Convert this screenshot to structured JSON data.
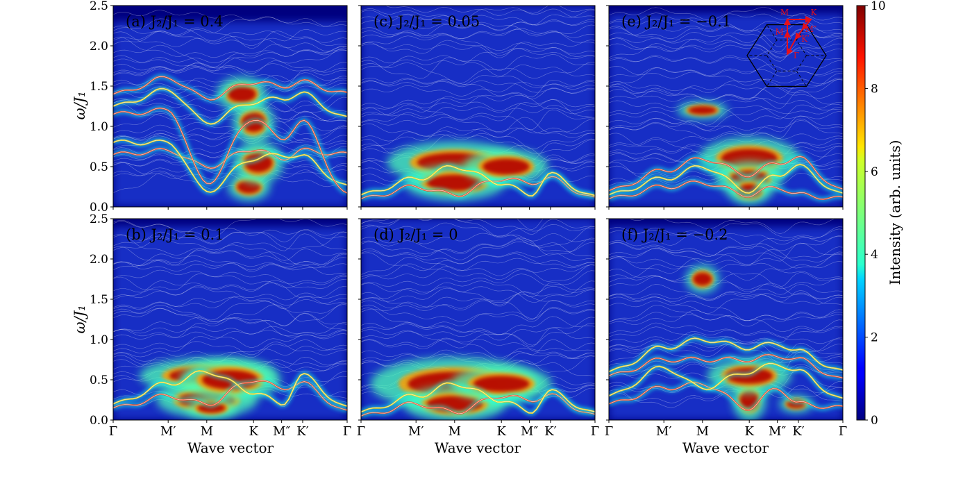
{
  "chart_data": {
    "type": "heatmap",
    "colormap": "jet",
    "panels": [
      {
        "id": "a",
        "label": "(a)",
        "param_label": "J₂/J₁ = 0.4",
        "j2_over_j1": 0.4,
        "modes": [
          [
            0.65,
            0.7,
            0.5,
            0.72,
            0.6,
            0.7,
            0.65
          ],
          [
            0.8,
            0.8,
            0.2,
            0.6,
            0.65,
            0.62,
            0.25
          ],
          [
            1.15,
            1.2,
            0.3,
            1.1,
            0.85,
            1.05,
            0.15
          ],
          [
            1.25,
            1.45,
            1.05,
            1.3,
            1.35,
            1.4,
            1.1
          ],
          [
            1.4,
            1.6,
            1.35,
            1.55,
            1.5,
            1.55,
            1.4
          ]
        ],
        "highlights": [
          [
            0.58,
            0.25,
            0.05,
            0.08
          ],
          [
            0.62,
            0.55,
            0.06,
            0.12
          ],
          [
            0.6,
            1.05,
            0.05,
            0.12
          ],
          [
            0.55,
            1.4,
            0.06,
            0.1
          ]
        ],
        "continuum_max": 2.3
      },
      {
        "id": "b",
        "label": "(b)",
        "param_label": "J₂/J₁ = 0.1",
        "j2_over_j1": 0.1,
        "modes": [
          [
            0.15,
            0.3,
            0.2,
            0.5,
            0.4,
            0.45,
            0.1
          ],
          [
            0.2,
            0.45,
            0.6,
            0.35,
            0.2,
            0.55,
            0.15
          ]
        ],
        "highlights": [
          [
            0.4,
            0.55,
            0.16,
            0.1
          ],
          [
            0.4,
            0.25,
            0.12,
            0.1
          ],
          [
            0.5,
            0.5,
            0.12,
            0.12
          ],
          [
            0.42,
            0.15,
            0.06,
            0.06
          ]
        ],
        "continuum_max": 2.4
      },
      {
        "id": "c",
        "label": "(c)",
        "param_label": "J₂/J₁ = 0.05",
        "j2_over_j1": 0.05,
        "modes": [
          [
            0.1,
            0.25,
            0.15,
            0.35,
            0.3,
            0.35,
            0.1
          ],
          [
            0.15,
            0.35,
            0.5,
            0.3,
            0.15,
            0.4,
            0.12
          ]
        ],
        "highlights": [
          [
            0.4,
            0.55,
            0.16,
            0.12
          ],
          [
            0.4,
            0.3,
            0.12,
            0.1
          ],
          [
            0.62,
            0.5,
            0.1,
            0.1
          ]
        ],
        "continuum_max": 2.5
      },
      {
        "id": "d",
        "label": "(d)",
        "param_label": "J₂/J₁ = 0",
        "j2_over_j1": 0,
        "modes": [
          [
            0.05,
            0.2,
            0.1,
            0.3,
            0.25,
            0.3,
            0.05
          ],
          [
            0.1,
            0.3,
            0.45,
            0.25,
            0.1,
            0.35,
            0.08
          ]
        ],
        "highlights": [
          [
            0.4,
            0.45,
            0.2,
            0.15
          ],
          [
            0.4,
            0.2,
            0.12,
            0.1
          ],
          [
            0.6,
            0.45,
            0.12,
            0.1
          ]
        ],
        "continuum_max": 2.5
      },
      {
        "id": "e",
        "label": "(e)",
        "param_label": "J₂/J₁ = −0.1",
        "j2_over_j1": -0.1,
        "modes": [
          [
            0.1,
            0.25,
            0.3,
            0.15,
            0.25,
            0.15,
            0.1
          ],
          [
            0.15,
            0.35,
            0.5,
            0.2,
            0.4,
            0.5,
            0.15
          ],
          [
            0.2,
            0.45,
            0.6,
            0.4,
            0.55,
            0.6,
            0.2
          ]
        ],
        "highlights": [
          [
            0.6,
            0.6,
            0.12,
            0.12
          ],
          [
            0.6,
            0.35,
            0.08,
            0.1
          ],
          [
            0.6,
            0.2,
            0.05,
            0.08
          ],
          [
            0.4,
            1.2,
            0.06,
            0.05
          ]
        ],
        "continuum_max": 2.4
      },
      {
        "id": "f",
        "label": "(f)",
        "param_label": "J₂/J₁ = −0.2",
        "j2_over_j1": -0.2,
        "modes": [
          [
            0.2,
            0.4,
            0.45,
            0.15,
            0.4,
            0.2,
            0.15
          ],
          [
            0.3,
            0.65,
            0.4,
            0.6,
            0.7,
            0.6,
            0.25
          ],
          [
            0.55,
            0.75,
            0.75,
            0.75,
            0.8,
            0.75,
            0.5
          ],
          [
            0.6,
            0.9,
            1.0,
            0.9,
            0.95,
            0.85,
            0.6
          ]
        ],
        "highlights": [
          [
            0.6,
            0.25,
            0.04,
            0.12
          ],
          [
            0.6,
            0.55,
            0.1,
            0.1
          ],
          [
            0.4,
            1.75,
            0.04,
            0.08
          ],
          [
            0.8,
            0.2,
            0.04,
            0.05
          ]
        ],
        "continuum_max": 2.4
      }
    ],
    "x_ticks": [
      "Γ",
      "M′",
      "M",
      "K",
      "M″",
      "K′",
      "Γ"
    ],
    "x_tick_positions": [
      0,
      0.235,
      0.4,
      0.6,
      0.72,
      0.81,
      1
    ],
    "xlabel": "Wave vector",
    "ylabel": "ω/J₁",
    "ylim": [
      0,
      2.5
    ],
    "y_ticks": [
      "0.0",
      "0.5",
      "1.0",
      "1.5",
      "2.0",
      "2.5"
    ],
    "y_tick_values": [
      0,
      0.5,
      1.0,
      1.5,
      2.0,
      2.5
    ],
    "colorbar": {
      "label": "Intensity (arb. units)",
      "range": [
        0,
        10
      ],
      "ticks": [
        "0",
        "2",
        "4",
        "6",
        "8",
        "10"
      ],
      "tick_values": [
        0,
        2,
        4,
        6,
        8,
        10
      ]
    },
    "inset": {
      "labels": [
        "M",
        "K",
        "M′",
        "M″",
        "K′",
        "Γ"
      ],
      "path_color": "#e8101a"
    },
    "colors": {
      "background_low": "#00007f",
      "continuum": "#ffffff",
      "path": "#e8101a"
    }
  }
}
